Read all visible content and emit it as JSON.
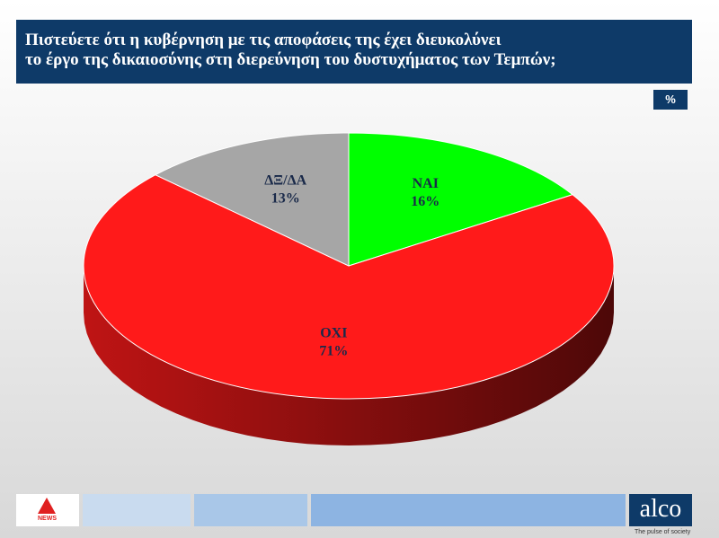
{
  "chart_data": {
    "type": "pie",
    "title": "Πιστεύετε ότι η κυβέρνηση με τις αποφάσεις της έχει διευκολύνει\nτο έργο της δικαιοσύνης στη διερεύνηση του δυστυχήματος των Τεμπών;",
    "unit": "%",
    "categories": [
      "ΝΑΙ",
      "ΟΧΙ",
      "ΔΞ/ΔΑ"
    ],
    "values": [
      16,
      71,
      13
    ],
    "value_labels": [
      "16%",
      "71%",
      "13%"
    ],
    "colors": [
      "#00ff00",
      "#ff1a1a",
      "#a6a6a6"
    ]
  },
  "footer": {
    "logo_tag": "NEWS",
    "brand": "alco",
    "slogan": "The pulse of society"
  }
}
